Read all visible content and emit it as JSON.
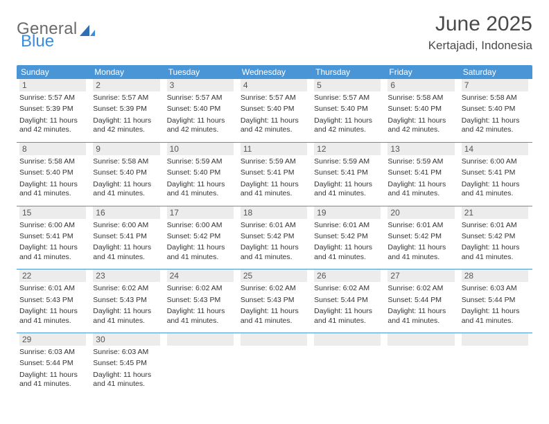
{
  "logo": {
    "text_general": "General",
    "text_blue": "Blue"
  },
  "header": {
    "title": "June 2025",
    "location": "Kertajadi, Indonesia"
  },
  "colors": {
    "header_bar": "#4a95d6",
    "daynum_bg": "#ececec",
    "week_divider": "#4a95d6",
    "logo_gray": "#6a6a6a",
    "logo_blue": "#3a8dde",
    "text": "#333333"
  },
  "dow": [
    "Sunday",
    "Monday",
    "Tuesday",
    "Wednesday",
    "Thursday",
    "Friday",
    "Saturday"
  ],
  "weeks": [
    [
      {
        "day": "1",
        "sunrise": "Sunrise: 5:57 AM",
        "sunset": "Sunset: 5:39 PM",
        "daylight": "Daylight: 11 hours and 42 minutes."
      },
      {
        "day": "2",
        "sunrise": "Sunrise: 5:57 AM",
        "sunset": "Sunset: 5:39 PM",
        "daylight": "Daylight: 11 hours and 42 minutes."
      },
      {
        "day": "3",
        "sunrise": "Sunrise: 5:57 AM",
        "sunset": "Sunset: 5:40 PM",
        "daylight": "Daylight: 11 hours and 42 minutes."
      },
      {
        "day": "4",
        "sunrise": "Sunrise: 5:57 AM",
        "sunset": "Sunset: 5:40 PM",
        "daylight": "Daylight: 11 hours and 42 minutes."
      },
      {
        "day": "5",
        "sunrise": "Sunrise: 5:57 AM",
        "sunset": "Sunset: 5:40 PM",
        "daylight": "Daylight: 11 hours and 42 minutes."
      },
      {
        "day": "6",
        "sunrise": "Sunrise: 5:58 AM",
        "sunset": "Sunset: 5:40 PM",
        "daylight": "Daylight: 11 hours and 42 minutes."
      },
      {
        "day": "7",
        "sunrise": "Sunrise: 5:58 AM",
        "sunset": "Sunset: 5:40 PM",
        "daylight": "Daylight: 11 hours and 42 minutes."
      }
    ],
    [
      {
        "day": "8",
        "sunrise": "Sunrise: 5:58 AM",
        "sunset": "Sunset: 5:40 PM",
        "daylight": "Daylight: 11 hours and 41 minutes."
      },
      {
        "day": "9",
        "sunrise": "Sunrise: 5:58 AM",
        "sunset": "Sunset: 5:40 PM",
        "daylight": "Daylight: 11 hours and 41 minutes."
      },
      {
        "day": "10",
        "sunrise": "Sunrise: 5:59 AM",
        "sunset": "Sunset: 5:40 PM",
        "daylight": "Daylight: 11 hours and 41 minutes."
      },
      {
        "day": "11",
        "sunrise": "Sunrise: 5:59 AM",
        "sunset": "Sunset: 5:41 PM",
        "daylight": "Daylight: 11 hours and 41 minutes."
      },
      {
        "day": "12",
        "sunrise": "Sunrise: 5:59 AM",
        "sunset": "Sunset: 5:41 PM",
        "daylight": "Daylight: 11 hours and 41 minutes."
      },
      {
        "day": "13",
        "sunrise": "Sunrise: 5:59 AM",
        "sunset": "Sunset: 5:41 PM",
        "daylight": "Daylight: 11 hours and 41 minutes."
      },
      {
        "day": "14",
        "sunrise": "Sunrise: 6:00 AM",
        "sunset": "Sunset: 5:41 PM",
        "daylight": "Daylight: 11 hours and 41 minutes."
      }
    ],
    [
      {
        "day": "15",
        "sunrise": "Sunrise: 6:00 AM",
        "sunset": "Sunset: 5:41 PM",
        "daylight": "Daylight: 11 hours and 41 minutes."
      },
      {
        "day": "16",
        "sunrise": "Sunrise: 6:00 AM",
        "sunset": "Sunset: 5:41 PM",
        "daylight": "Daylight: 11 hours and 41 minutes."
      },
      {
        "day": "17",
        "sunrise": "Sunrise: 6:00 AM",
        "sunset": "Sunset: 5:42 PM",
        "daylight": "Daylight: 11 hours and 41 minutes."
      },
      {
        "day": "18",
        "sunrise": "Sunrise: 6:01 AM",
        "sunset": "Sunset: 5:42 PM",
        "daylight": "Daylight: 11 hours and 41 minutes."
      },
      {
        "day": "19",
        "sunrise": "Sunrise: 6:01 AM",
        "sunset": "Sunset: 5:42 PM",
        "daylight": "Daylight: 11 hours and 41 minutes."
      },
      {
        "day": "20",
        "sunrise": "Sunrise: 6:01 AM",
        "sunset": "Sunset: 5:42 PM",
        "daylight": "Daylight: 11 hours and 41 minutes."
      },
      {
        "day": "21",
        "sunrise": "Sunrise: 6:01 AM",
        "sunset": "Sunset: 5:42 PM",
        "daylight": "Daylight: 11 hours and 41 minutes."
      }
    ],
    [
      {
        "day": "22",
        "sunrise": "Sunrise: 6:01 AM",
        "sunset": "Sunset: 5:43 PM",
        "daylight": "Daylight: 11 hours and 41 minutes."
      },
      {
        "day": "23",
        "sunrise": "Sunrise: 6:02 AM",
        "sunset": "Sunset: 5:43 PM",
        "daylight": "Daylight: 11 hours and 41 minutes."
      },
      {
        "day": "24",
        "sunrise": "Sunrise: 6:02 AM",
        "sunset": "Sunset: 5:43 PM",
        "daylight": "Daylight: 11 hours and 41 minutes."
      },
      {
        "day": "25",
        "sunrise": "Sunrise: 6:02 AM",
        "sunset": "Sunset: 5:43 PM",
        "daylight": "Daylight: 11 hours and 41 minutes."
      },
      {
        "day": "26",
        "sunrise": "Sunrise: 6:02 AM",
        "sunset": "Sunset: 5:44 PM",
        "daylight": "Daylight: 11 hours and 41 minutes."
      },
      {
        "day": "27",
        "sunrise": "Sunrise: 6:02 AM",
        "sunset": "Sunset: 5:44 PM",
        "daylight": "Daylight: 11 hours and 41 minutes."
      },
      {
        "day": "28",
        "sunrise": "Sunrise: 6:03 AM",
        "sunset": "Sunset: 5:44 PM",
        "daylight": "Daylight: 11 hours and 41 minutes."
      }
    ],
    [
      {
        "day": "29",
        "sunrise": "Sunrise: 6:03 AM",
        "sunset": "Sunset: 5:44 PM",
        "daylight": "Daylight: 11 hours and 41 minutes."
      },
      {
        "day": "30",
        "sunrise": "Sunrise: 6:03 AM",
        "sunset": "Sunset: 5:45 PM",
        "daylight": "Daylight: 11 hours and 41 minutes."
      },
      {
        "empty": true
      },
      {
        "empty": true
      },
      {
        "empty": true
      },
      {
        "empty": true
      },
      {
        "empty": true
      }
    ]
  ]
}
